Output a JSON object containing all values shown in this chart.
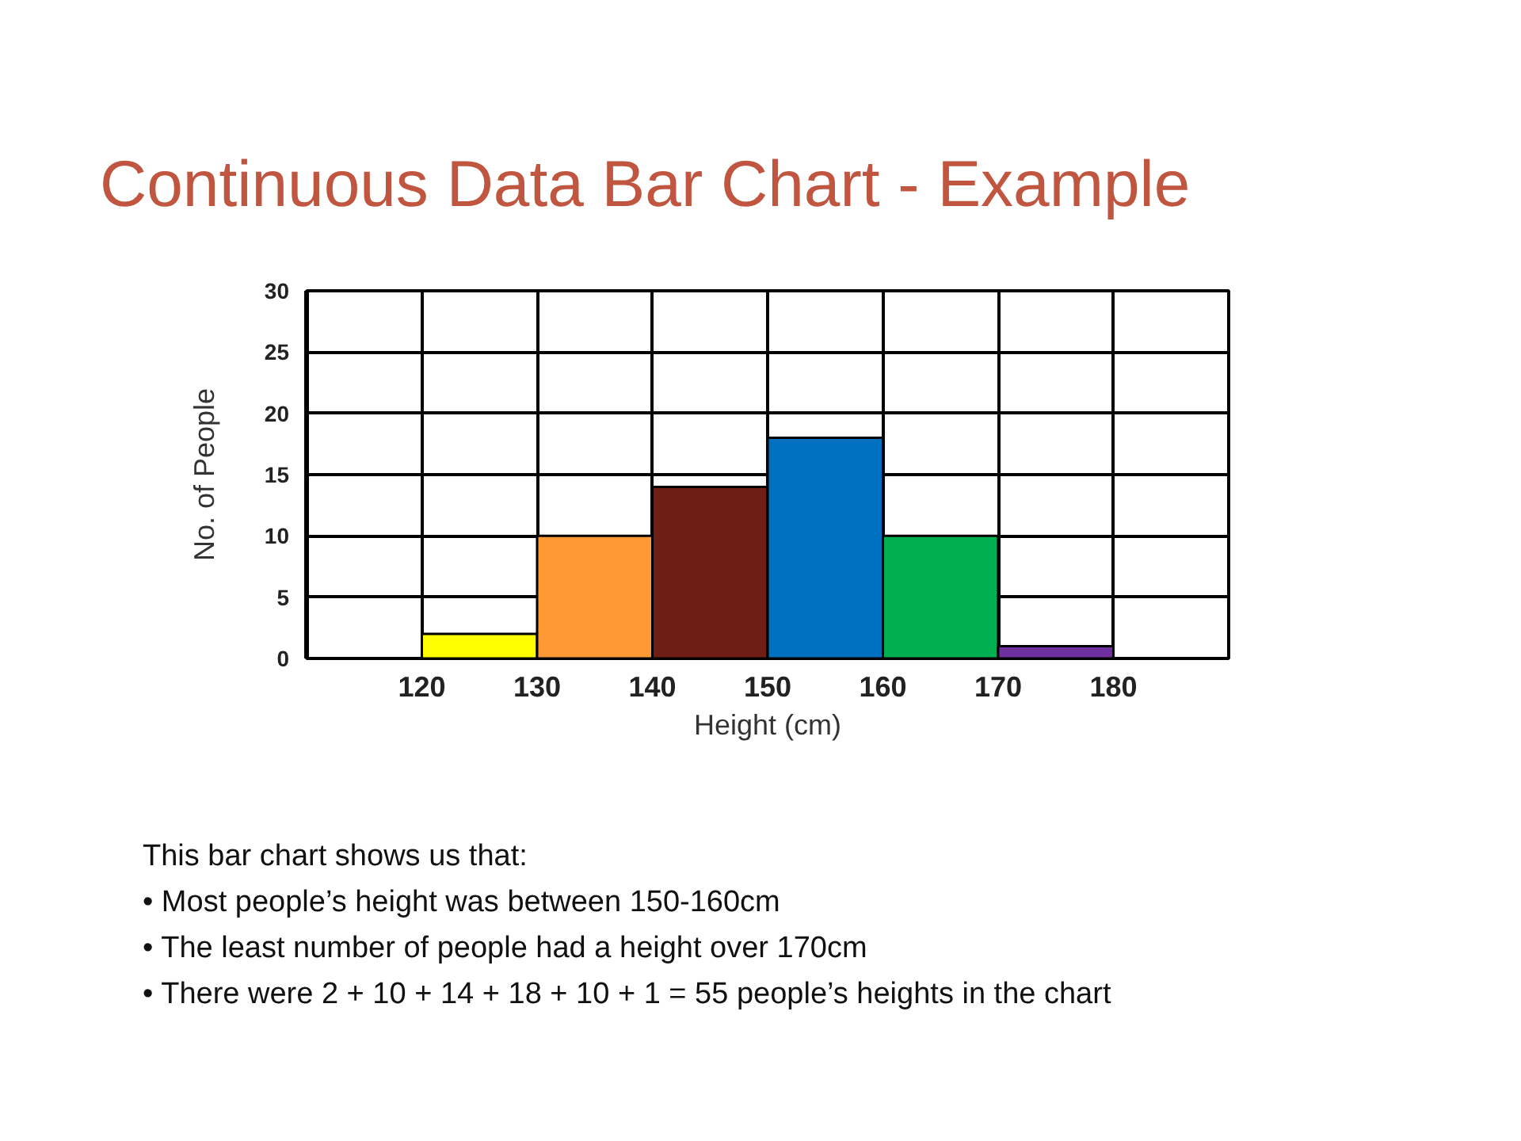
{
  "chart_data": {
    "type": "histogram",
    "title": "Continuous Data Bar Chart - Example",
    "xlabel": "Height (cm)",
    "ylabel": "No. of People",
    "bins": [
      120,
      130,
      140,
      150,
      160,
      170,
      180
    ],
    "values": [
      2,
      10,
      14,
      18,
      10,
      1
    ],
    "colors": [
      "#ffff00",
      "#ff9933",
      "#6e1e14",
      "#0070c0",
      "#00b050",
      "#7030a0"
    ],
    "xlim": [
      110,
      190
    ],
    "xticks": [
      120,
      130,
      140,
      150,
      160,
      170,
      180
    ],
    "ylim": [
      0,
      30
    ],
    "yticks": [
      0,
      5,
      10,
      15,
      20,
      25,
      30
    ],
    "grid": true,
    "annotations": [
      "This bar chart shows us that:",
      "• Most people’s height was between 150-160cm",
      "• The least number of people had a height over 170cm",
      "• There were  2 + 10 + 14 + 18 + 10 + 1 = 55 people’s heights in the chart"
    ]
  }
}
